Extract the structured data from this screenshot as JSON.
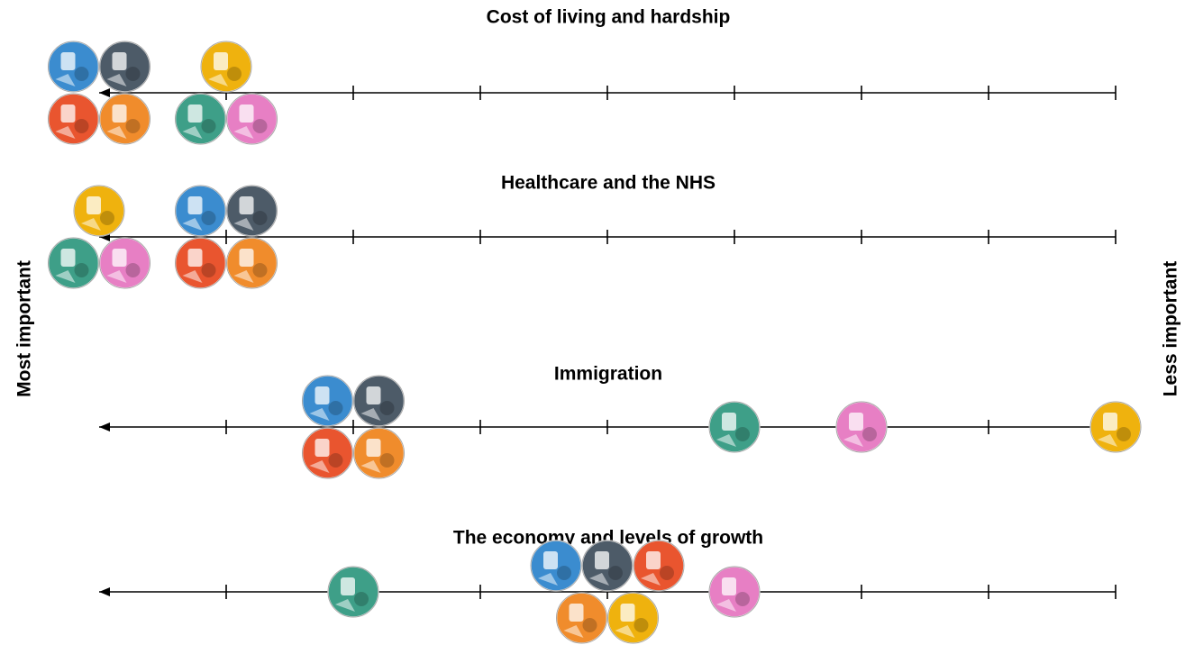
{
  "chart_data": {
    "type": "dot",
    "x_label_left": "Most important",
    "x_label_right": "Less important",
    "categories": [
      "Cost of living and hardship",
      "Healthcare and the NHS",
      "Immigration",
      "The economy and levels of growth"
    ],
    "xlim": [
      1,
      9
    ],
    "xticks": [
      2,
      3,
      4,
      5,
      6,
      7,
      8,
      9
    ],
    "series": [
      {
        "color": "#3b8ccf",
        "values": [
          1,
          2,
          3,
          5
        ]
      },
      {
        "color": "#4d5b68",
        "values": [
          1,
          2,
          3,
          5
        ]
      },
      {
        "color": "#e9552f",
        "values": [
          1,
          2,
          3,
          5
        ]
      },
      {
        "color": "#f08c2c",
        "values": [
          1,
          2,
          3,
          5
        ]
      },
      {
        "color": "#efb20e",
        "values": [
          2,
          1,
          9,
          5
        ]
      },
      {
        "color": "#3e9f88",
        "values": [
          2,
          1,
          6,
          3
        ]
      },
      {
        "color": "#e77fc4",
        "values": [
          2,
          1,
          7,
          6
        ]
      }
    ]
  }
}
